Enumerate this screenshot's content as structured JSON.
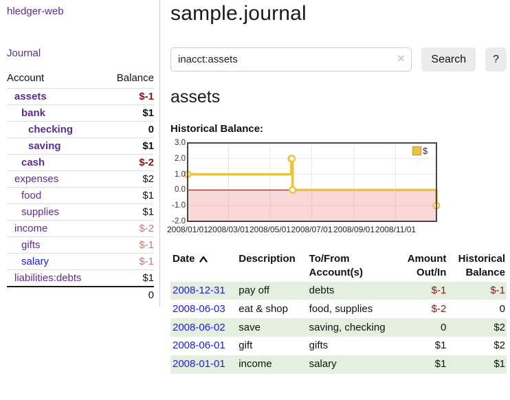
{
  "colors": {
    "accent_purple": "#5c2d91",
    "link_blue": "#1b1be8",
    "negative_strong": "#8b1414",
    "negative_soft": "#bd7a7a",
    "row_stripe_green": "#e4efe0",
    "chart_gold": "#edc240",
    "chart_negative_fill": "rgba(240,100,100,0.25)",
    "zero_line_red": "#8b0000",
    "chart_border": "#474747",
    "grid_line": "#e8e8e8",
    "button_bg": "#ebebeb",
    "divider": "#cccccc"
  },
  "app": {
    "brand": "hledger-web"
  },
  "sidebar": {
    "journal_link": "Journal",
    "accounts": {
      "headers": [
        "Account",
        "Balance"
      ],
      "rows": [
        {
          "account": "assets",
          "balance": "$-1",
          "indent": 1,
          "bold": true
        },
        {
          "account": "bank",
          "balance": "$1",
          "indent": 2,
          "bold": true
        },
        {
          "account": "checking",
          "balance": "0",
          "indent": 3,
          "bold": true
        },
        {
          "account": "saving",
          "balance": "$1",
          "indent": 3,
          "bold": true
        },
        {
          "account": "cash",
          "balance": "$-2",
          "indent": 2,
          "bold": true
        },
        {
          "account": "expenses",
          "balance": "$2",
          "indent": 1,
          "bold": false
        },
        {
          "account": "food",
          "balance": "$1",
          "indent": 2,
          "bold": false
        },
        {
          "account": "supplies",
          "balance": "$1",
          "indent": 2,
          "bold": false
        },
        {
          "account": "income",
          "balance": "$-2",
          "indent": 1,
          "bold": false
        },
        {
          "account": "gifts",
          "balance": "$-1",
          "indent": 2,
          "bold": false
        },
        {
          "account": "salary",
          "balance": "$-1",
          "indent": 2,
          "bold": false,
          "blue": true
        },
        {
          "account": "liabilities:debts",
          "balance": "$1",
          "indent": 1,
          "bold": false
        }
      ],
      "total": "0"
    }
  },
  "main": {
    "title": "sample.journal",
    "search": {
      "value": "inacct:assets",
      "clear_icon": "✕",
      "button_label": "Search",
      "help_label": "?"
    },
    "account_heading": "assets",
    "chart": {
      "title": "Historical Balance:",
      "legend_label": "$"
    },
    "register": {
      "headers": [
        {
          "lines": [
            "Date"
          ],
          "align": "left",
          "sorted_asc": true
        },
        {
          "lines": [
            "Description"
          ],
          "align": "left"
        },
        {
          "lines": [
            "To/From",
            "Account(s)"
          ],
          "align": "left"
        },
        {
          "lines": [
            "Amount",
            "Out/In"
          ],
          "align": "right"
        },
        {
          "lines": [
            "Historical",
            "Balance"
          ],
          "align": "right"
        }
      ],
      "rows": [
        {
          "date": "2008-12-31",
          "description": "pay off",
          "accounts": "debts",
          "amount": "$-1",
          "balance": "$-1"
        },
        {
          "date": "2008-06-03",
          "description": "eat & shop",
          "accounts": "food, supplies",
          "amount": "$-2",
          "balance": "0"
        },
        {
          "date": "2008-06-02",
          "description": "save",
          "accounts": "saving, checking",
          "amount": "0",
          "balance": "$2"
        },
        {
          "date": "2008-06-01",
          "description": "gift",
          "accounts": "gifts",
          "amount": "$1",
          "balance": "$2"
        },
        {
          "date": "2008-01-01",
          "description": "income",
          "accounts": "salary",
          "amount": "$1",
          "balance": "$1"
        }
      ]
    }
  },
  "chart_data": {
    "type": "line",
    "step": true,
    "title": "Historical Balance:",
    "series": [
      {
        "name": "$",
        "points": [
          [
            "2008-01-01",
            1
          ],
          [
            "2008-06-01",
            2
          ],
          [
            "2008-06-02",
            2
          ],
          [
            "2008-06-03",
            0
          ],
          [
            "2008-12-31",
            -1
          ]
        ]
      }
    ],
    "x_ticks": [
      "2008/01/01",
      "2008/03/01",
      "2008/05/01",
      "2008/07/01",
      "2008/09/01",
      "2008/11/01"
    ],
    "y_ticks": [
      3.0,
      2.0,
      1.0,
      0.0,
      -1.0,
      -2.0
    ],
    "xlim": [
      "2008-01-01",
      "2008-12-31"
    ],
    "ylim": [
      -2,
      3
    ],
    "legend_position": "top-right",
    "grid": true,
    "negative_region_shaded": true,
    "zero_line": true
  }
}
